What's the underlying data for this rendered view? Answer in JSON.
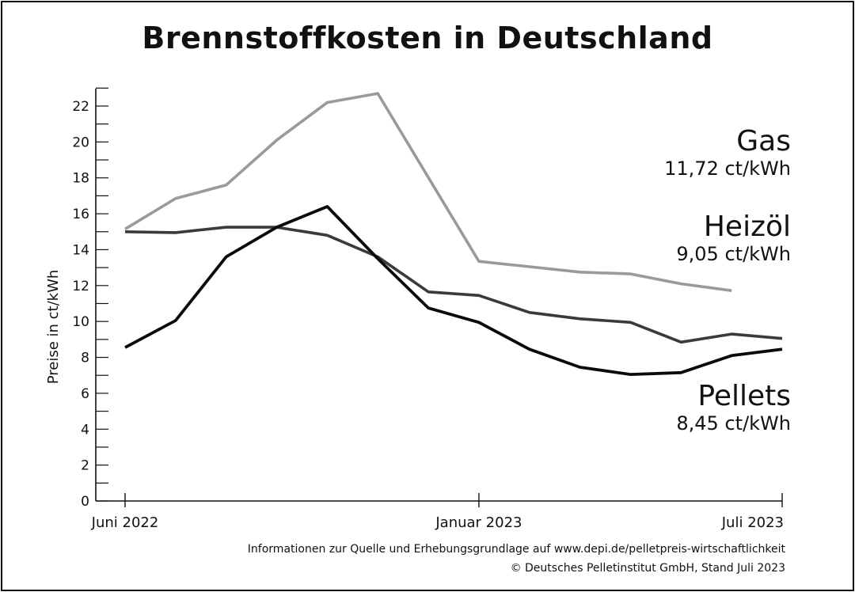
{
  "colors": {
    "gas": "#9a9a9a",
    "heizoel": "#3a3a3a",
    "pellets": "#0a0a0a",
    "axis": "#111111"
  },
  "footer": {
    "source": "Informationen zur Quelle und Erhebungsgrundlage auf www.depi.de/pelletpreis-wirtschaftlichkeit",
    "copyright": "© Deutsches Pelletinstitut GmbH, Stand Juli 2023"
  },
  "chart_data": {
    "type": "line",
    "title": "Brennstoffkosten in Deutschland",
    "ylabel": "Preise in ct/kWh",
    "xlabel": "",
    "ylim": [
      0,
      22
    ],
    "yticks": [
      0,
      2,
      4,
      6,
      8,
      10,
      12,
      14,
      16,
      18,
      20,
      22
    ],
    "x": [
      "2022-06",
      "2022-07",
      "2022-08",
      "2022-09",
      "2022-10",
      "2022-11",
      "2022-12",
      "2023-01",
      "2023-02",
      "2023-03",
      "2023-04",
      "2023-05",
      "2023-06",
      "2023-07"
    ],
    "x_ticklabels": [
      {
        "at": "2022-06",
        "label": "Juni 2022"
      },
      {
        "at": "2023-01",
        "label": "Januar 2023"
      },
      {
        "at": "2023-07",
        "label": "Juli 2023"
      }
    ],
    "grid": false,
    "series": [
      {
        "key": "gas",
        "name": "Gas",
        "value_label": "11,72 ct/kWh",
        "values": [
          15.15,
          16.85,
          17.6,
          20.1,
          22.2,
          22.7,
          null,
          13.35,
          13.05,
          12.75,
          12.65,
          12.1,
          11.72,
          null
        ]
      },
      {
        "key": "heizoel",
        "name": "Heizöl",
        "value_label": "9,05 ct/kWh",
        "values": [
          15.0,
          14.95,
          15.25,
          15.25,
          14.8,
          13.6,
          11.65,
          11.45,
          10.5,
          10.15,
          9.95,
          8.85,
          9.3,
          9.05
        ]
      },
      {
        "key": "pellets",
        "name": "Pellets",
        "value_label": "8,45 ct/kWh",
        "values": [
          8.55,
          10.05,
          13.6,
          15.25,
          16.4,
          13.5,
          10.75,
          9.95,
          8.45,
          7.45,
          7.05,
          7.15,
          8.1,
          8.45
        ]
      }
    ]
  }
}
